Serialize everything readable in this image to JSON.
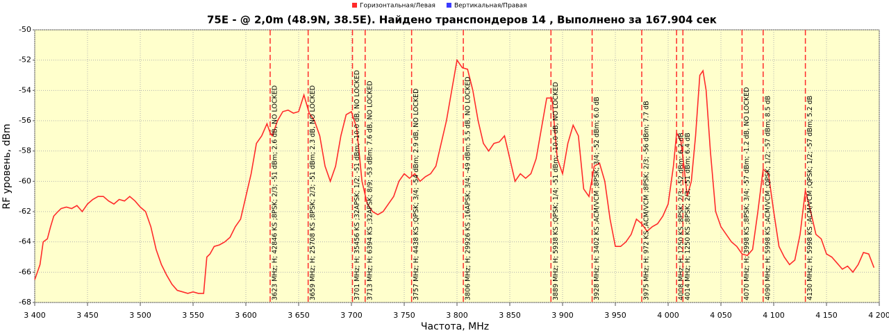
{
  "chart_data": {
    "type": "line",
    "title": "75E -  @ 2,0m (48.9N, 38.5E). Найдено транспондеров 14 , Выполнено за 167.904 сек",
    "x_label": "Частота, MHz",
    "y_label": "RF уровень, dBm",
    "grid": true,
    "legend": "top",
    "xlim": [
      3400,
      4200
    ],
    "ylim": [
      -68,
      -50
    ],
    "xticks": [
      {
        "value": 3400,
        "label": "3 400"
      },
      {
        "value": 3450,
        "label": "3 450"
      },
      {
        "value": 3500,
        "label": "3 500"
      },
      {
        "value": 3550,
        "label": "3 550"
      },
      {
        "value": 3600,
        "label": "3 600"
      },
      {
        "value": 3650,
        "label": "3 650"
      },
      {
        "value": 3700,
        "label": "3 700"
      },
      {
        "value": 3750,
        "label": "3 750"
      },
      {
        "value": 3800,
        "label": "3 800"
      },
      {
        "value": 3850,
        "label": "3 850"
      },
      {
        "value": 3900,
        "label": "3 900"
      },
      {
        "value": 3950,
        "label": "3 950"
      },
      {
        "value": 4000,
        "label": "4 000"
      },
      {
        "value": 4050,
        "label": "4 050"
      },
      {
        "value": 4100,
        "label": "4 100"
      },
      {
        "value": 4150,
        "label": "4 150"
      },
      {
        "value": 4200,
        "label": "4 200"
      }
    ],
    "yticks": [
      -50,
      -52,
      -54,
      -56,
      -58,
      -60,
      -62,
      -64,
      -66,
      -68
    ],
    "series": [
      {
        "name": "Горизонтальная/Левая",
        "color": "#ff2a2a",
        "x": [
          3400,
          3405,
          3408,
          3412,
          3415,
          3418,
          3422,
          3425,
          3430,
          3435,
          3440,
          3445,
          3450,
          3455,
          3460,
          3465,
          3470,
          3475,
          3480,
          3485,
          3490,
          3495,
          3500,
          3505,
          3510,
          3515,
          3520,
          3525,
          3530,
          3535,
          3540,
          3545,
          3550,
          3555,
          3560,
          3563,
          3566,
          3570,
          3575,
          3580,
          3585,
          3590,
          3595,
          3600,
          3605,
          3610,
          3615,
          3620,
          3623,
          3625,
          3630,
          3635,
          3640,
          3645,
          3650,
          3655,
          3660,
          3665,
          3670,
          3675,
          3680,
          3685,
          3690,
          3695,
          3700,
          3705,
          3710,
          3715,
          3720,
          3725,
          3730,
          3735,
          3740,
          3745,
          3750,
          3755,
          3760,
          3765,
          3770,
          3775,
          3780,
          3785,
          3790,
          3795,
          3800,
          3805,
          3810,
          3815,
          3820,
          3825,
          3830,
          3835,
          3840,
          3845,
          3850,
          3855,
          3860,
          3865,
          3870,
          3875,
          3880,
          3885,
          3890,
          3895,
          3900,
          3905,
          3910,
          3915,
          3920,
          3925,
          3930,
          3935,
          3940,
          3945,
          3950,
          3955,
          3960,
          3965,
          3970,
          3975,
          3980,
          3985,
          3990,
          3995,
          4000,
          4005,
          4008,
          4012,
          4015,
          4018,
          4022,
          4026,
          4030,
          4033,
          4036,
          4040,
          4045,
          4050,
          4055,
          4060,
          4065,
          4070,
          4075,
          4080,
          4085,
          4090,
          4095,
          4100,
          4105,
          4110,
          4115,
          4120,
          4125,
          4130,
          4135,
          4140,
          4145,
          4150,
          4155,
          4160,
          4165,
          4170,
          4175,
          4180,
          4185,
          4190,
          4195
        ],
        "values": [
          -66.5,
          -65.5,
          -64,
          -63.8,
          -63,
          -62.3,
          -62,
          -61.8,
          -61.7,
          -61.8,
          -61.6,
          -62,
          -61.5,
          -61.2,
          -61,
          -61,
          -61.3,
          -61.5,
          -61.2,
          -61.3,
          -61,
          -61.3,
          -61.7,
          -62,
          -63,
          -64.5,
          -65.5,
          -66.2,
          -66.8,
          -67.2,
          -67.3,
          -67.4,
          -67.3,
          -67.4,
          -67.4,
          -65,
          -64.8,
          -64.3,
          -64.2,
          -64,
          -63.7,
          -63,
          -62.5,
          -61,
          -59.5,
          -57.5,
          -57,
          -56.2,
          -56.8,
          -57,
          -56,
          -55.4,
          -55.3,
          -55.5,
          -55.4,
          -54.3,
          -55.5,
          -56,
          -57,
          -59,
          -60,
          -59,
          -57,
          -55.6,
          -55.4,
          -56.5,
          -60,
          -61.5,
          -62,
          -62.2,
          -62,
          -61.5,
          -61,
          -60,
          -59.5,
          -59.8,
          -59.5,
          -60,
          -59.7,
          -59.5,
          -59,
          -57.5,
          -56,
          -54,
          -52,
          -52.5,
          -52.6,
          -54,
          -56,
          -57.5,
          -58,
          -57.5,
          -57.4,
          -57,
          -58.5,
          -60,
          -59.5,
          -59.8,
          -59.5,
          -58.5,
          -56.5,
          -54.5,
          -54.5,
          -58.5,
          -59.5,
          -57.5,
          -56.3,
          -57,
          -60.5,
          -61,
          -59,
          -58.8,
          -60,
          -62.5,
          -64.3,
          -64.3,
          -64,
          -63.5,
          -62.5,
          -62.8,
          -63.3,
          -63,
          -62.8,
          -62.3,
          -61.5,
          -59,
          -56.8,
          -57.3,
          -59,
          -61,
          -60,
          -57,
          -53,
          -52.7,
          -54,
          -58,
          -62,
          -63,
          -63.5,
          -64,
          -64.3,
          -64.8,
          -64.9,
          -64.5,
          -62,
          -59.2,
          -59.5,
          -62,
          -64.3,
          -65,
          -65.5,
          -65.2,
          -63.5,
          -60.6,
          -62,
          -63.5,
          -63.8,
          -64.8,
          -65,
          -65.4,
          -65.8,
          -65.6,
          -66,
          -65.5,
          -64.7,
          -64.8,
          -65.7
        ]
      },
      {
        "name": "Вертикальная/Правая",
        "color": "#3a3aff",
        "x": [],
        "values": []
      }
    ],
    "markers": [
      {
        "x": 3623,
        "label": "3623 MHz; H; 42846 KS ;8PSK; 2/3; -51 dBm; 2.6 dB, NO LOCKED"
      },
      {
        "x": 3659,
        "label": "3659 MHz; H; 25708 KS ;8PSK; 2/3; -51 dBm; 2.3 dB, NO LOCKED"
      },
      {
        "x": 3701,
        "label": "3701 MHz; H; 35456 KS ;32APSK; 1/2; -51 dBm; -10.0 dB, NO LOCKED"
      },
      {
        "x": 3713,
        "label": "3713 MHz; H; 6394 KS ;32APSK; 8/9; -53 dBm; 7.6 dB, NO LOCKED"
      },
      {
        "x": 3757,
        "label": "3757 MHz; H; 4438 KS ;QPSK; 3/4; -54 dBm; 2.9 dB, NO LOCKED"
      },
      {
        "x": 3806,
        "label": "3806 MHz; H; 29926 KS ;16APSK; 3/4; -49 dBm; 5.5 dB, NO LOCKED"
      },
      {
        "x": 3889,
        "label": "3889 MHz; H; 5938 KS ;QPSK; 1/4; -51 dBm; -10.0 dB, NO LOCKED"
      },
      {
        "x": 3928,
        "label": "3928 MHz; H; 3402 KS ;ACM/VCM ;8PSK; 3/4; -52 dBm; 6.0 dB"
      },
      {
        "x": 3975,
        "label": "3975 MHz; H; 972 KS ;ACM/VCM ;8PSK; 2/3; -56 dBm; 7.7 dB"
      },
      {
        "x": 4008,
        "label": "4008 MHz; H; 1250 KS ;8PSK; 2/3; -52 dBm; 6.2 dB"
      },
      {
        "x": 4014,
        "label": "4014 MHz; H; 1250 KS ;8PSK; 2/3; -51 dBm; 6.4 dB"
      },
      {
        "x": 4070,
        "label": "4070 MHz; H; 3998 KS ;8PSK; 3/4; -57 dBm; -1.2 dB, NO LOCKED"
      },
      {
        "x": 4090,
        "label": "4090 MHz; H; 5998 KS ;ACM/VCM ;QPSK; 1/2; -57 dBm; 8.5 dB"
      },
      {
        "x": 4130,
        "label": "4130 MHz; H; 5998 KS ;ACM/VCM ;QPSK; 1/2; -57 dBm; 5.2 dB"
      }
    ]
  }
}
